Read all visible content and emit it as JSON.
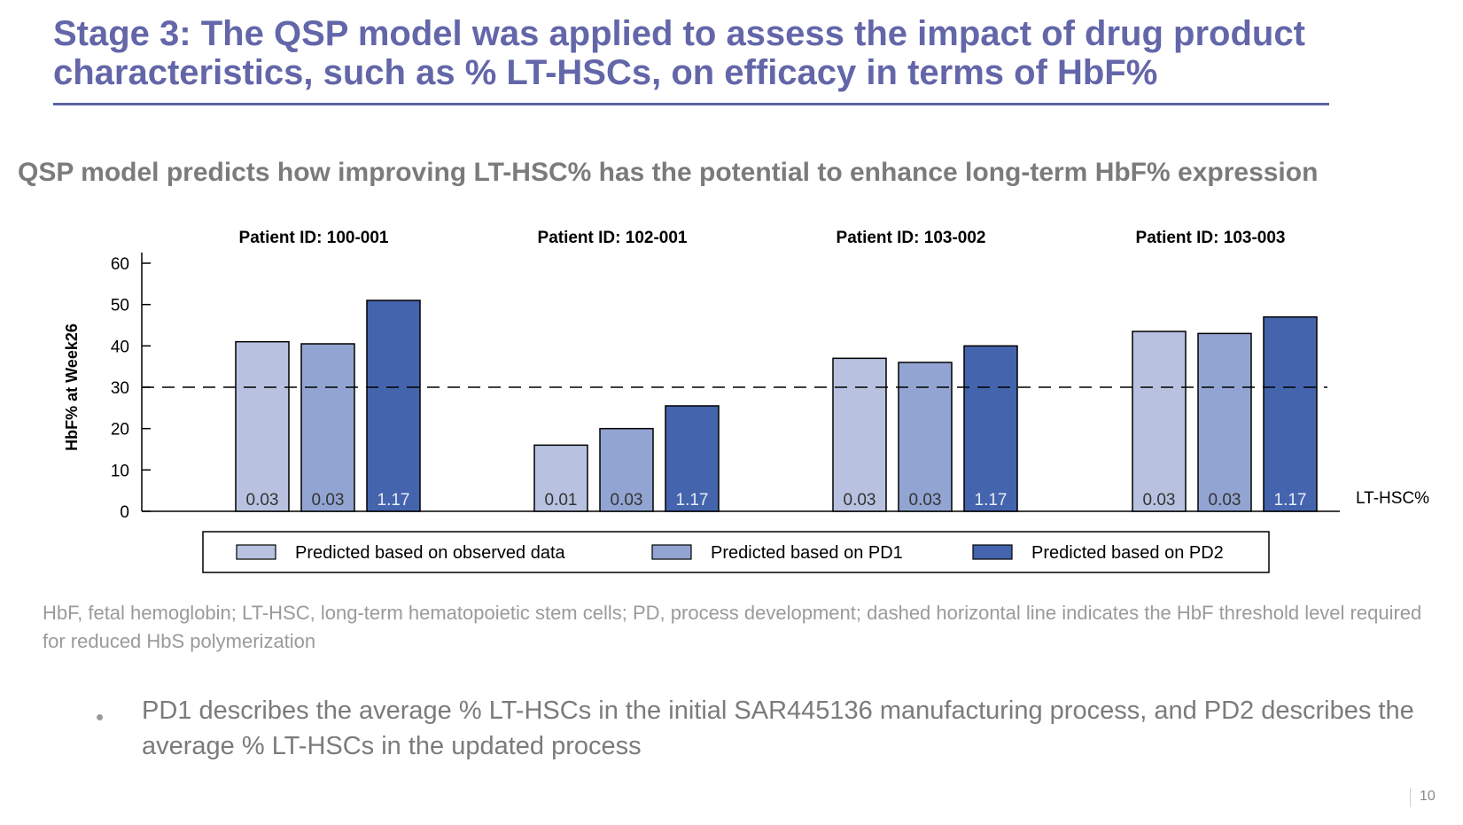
{
  "slide": {
    "title_stage": "Stage 3:",
    "title_rest": " The QSP model was applied to assess the impact of drug product characteristics, such as % LT-HSCs, on efficacy in terms of HbF%",
    "subtitle": "QSP model predicts how improving LT-HSC% has the potential to enhance long-term HbF% expression",
    "footnote": "HbF, fetal hemoglobin; LT-HSC, long-term hematopoietic stem cells; PD, process development; dashed horizontal line indicates the HbF threshold level required for reduced HbS polymerization",
    "bullet": "PD1 describes the average % LT-HSCs in the initial SAR445136 manufacturing process, and PD2 describes the average % LT-HSCs in the updated process",
    "page_number": "10"
  },
  "chart_data": {
    "type": "bar",
    "title": "",
    "ylabel": "HbF% at Week26",
    "xlabel": "LT-HSC%",
    "ylim": [
      0,
      60
    ],
    "yticks": [
      0,
      10,
      20,
      30,
      40,
      50,
      60
    ],
    "threshold": 30,
    "grid": false,
    "legend_position": "bottom",
    "categories": [
      "Patient ID: 100-001",
      "Patient ID: 102-001",
      "Patient ID: 103-002",
      "Patient ID: 103-003"
    ],
    "series": [
      {
        "name": "Predicted based on observed data",
        "color": "#b8c2e0",
        "values": [
          41,
          16,
          37,
          43.5
        ],
        "labels": [
          "0.03",
          "0.01",
          "0.03",
          "0.03"
        ]
      },
      {
        "name": "Predicted based on PD1",
        "color": "#92a5d2",
        "values": [
          40.5,
          20,
          36,
          43
        ],
        "labels": [
          "0.03",
          "0.03",
          "0.03",
          "0.03"
        ]
      },
      {
        "name": "Predicted based on PD2",
        "color": "#4464ad",
        "values": [
          51,
          25.5,
          40,
          47
        ],
        "labels": [
          "1.17",
          "1.17",
          "1.17",
          "1.17"
        ]
      }
    ]
  }
}
